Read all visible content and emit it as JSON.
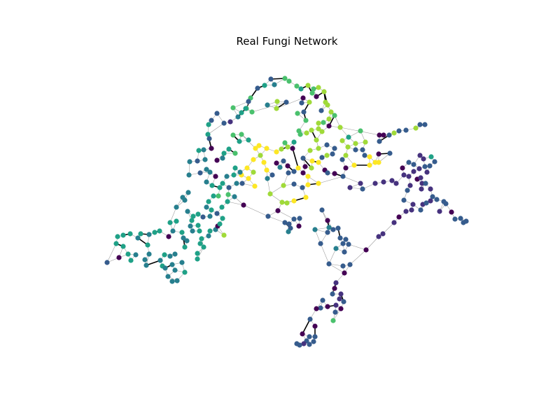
{
  "figure": {
    "title": "Real Fungi Network"
  },
  "colors": {
    "background": "#ffffff",
    "edge_thin": "#9a9a9a",
    "edge_thick": "#000000",
    "palette": [
      "#440154",
      "#46327e",
      "#365c8d",
      "#277f8e",
      "#1fa187",
      "#4ac16d",
      "#a0da39",
      "#fde725"
    ]
  }
}
